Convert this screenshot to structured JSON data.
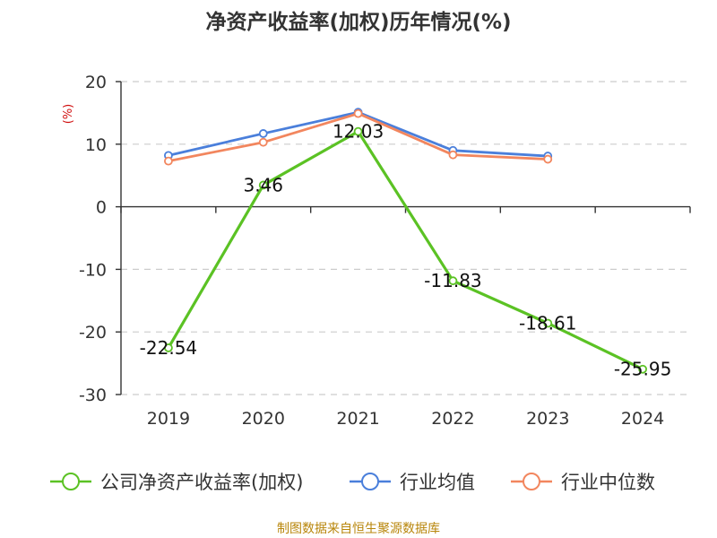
{
  "chart_data": {
    "type": "line",
    "title": "净资产收益率(加权)历年情况(%)",
    "ylabel": "(%)",
    "xlabel": "",
    "categories": [
      "2019",
      "2020",
      "2021",
      "2022",
      "2023",
      "2024"
    ],
    "ylim": [
      -30,
      20
    ],
    "yticks": [
      20,
      10,
      0,
      -10,
      -20,
      -30
    ],
    "grid": true,
    "legend_position": "bottom",
    "series": [
      {
        "name": "公司净资产收益率(加权)",
        "color": "#5bc224",
        "values": [
          -22.54,
          3.46,
          12.03,
          -11.83,
          -18.61,
          -25.95
        ],
        "labels": [
          "-22.54",
          "3.46",
          "12.03",
          "-11.83",
          "-18.61",
          "-25.95"
        ]
      },
      {
        "name": "行业均值",
        "color": "#4a7fdb",
        "values": [
          8.2,
          11.7,
          15.1,
          9.0,
          8.1,
          null
        ]
      },
      {
        "name": "行业中位数",
        "color": "#f2865e",
        "values": [
          7.3,
          10.3,
          14.9,
          8.3,
          7.6,
          null
        ]
      }
    ]
  },
  "source": "制图数据来自恒生聚源数据库"
}
